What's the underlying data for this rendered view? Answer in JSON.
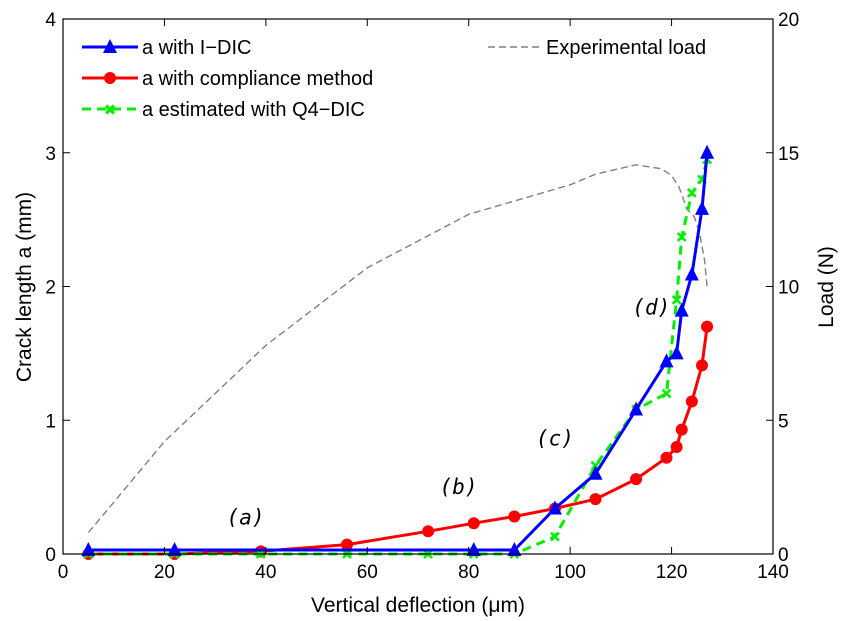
{
  "chart_data": {
    "type": "line",
    "xlabel": "Vertical deflection (μm)",
    "ylabel": "Crack length a (mm)",
    "y2label": "Load (N)",
    "xlim": [
      0,
      140
    ],
    "ylim": [
      0,
      4
    ],
    "y2lim": [
      0,
      20
    ],
    "x_ticks": [
      "0",
      "20",
      "40",
      "60",
      "80",
      "100",
      "120",
      "140"
    ],
    "y_ticks": [
      "0",
      "1",
      "2",
      "3",
      "4"
    ],
    "y2_ticks": [
      "0",
      "5",
      "10",
      "15",
      "20"
    ],
    "grid": false,
    "legend_left_position": "top-left",
    "legend_right_position": "top-right",
    "series": [
      {
        "name": "a with I−DIC",
        "axis": "left",
        "color": "#0000ff",
        "marker": "triangle",
        "line": "solid",
        "x": [
          5,
          22,
          81,
          89,
          97,
          105,
          113,
          119,
          121,
          122,
          124,
          126,
          127
        ],
        "y": [
          0.03,
          0.03,
          0.03,
          0.03,
          0.34,
          0.6,
          1.08,
          1.44,
          1.5,
          1.82,
          2.09,
          2.58,
          3.0
        ]
      },
      {
        "name": "a with compliance method",
        "axis": "left",
        "color": "#ff0000",
        "marker": "circle",
        "line": "solid",
        "x": [
          5,
          22,
          39,
          56,
          72,
          81,
          89,
          97,
          105,
          113,
          119,
          121,
          122,
          124,
          126,
          127
        ],
        "y": [
          0.0,
          0.0,
          0.02,
          0.07,
          0.17,
          0.23,
          0.28,
          0.34,
          0.41,
          0.56,
          0.72,
          0.8,
          0.93,
          1.14,
          1.41,
          1.7
        ]
      },
      {
        "name": "a estimated with Q4−DIC",
        "axis": "left",
        "color": "#00ee00",
        "marker": "x",
        "line": "dashed",
        "x": [
          5,
          22,
          39,
          56,
          72,
          81,
          89,
          97,
          105,
          113,
          119,
          121,
          122,
          124,
          126,
          127
        ],
        "y": [
          0.0,
          0.0,
          0.0,
          0.0,
          0.0,
          0.0,
          0.0,
          0.13,
          0.66,
          1.08,
          1.2,
          1.9,
          2.37,
          2.7,
          2.8,
          2.95
        ]
      },
      {
        "name": "Experimental load",
        "axis": "right",
        "color": "#808080",
        "marker": "none",
        "line": "dashed",
        "x": [
          5,
          20,
          40,
          60,
          80,
          100,
          105,
          113,
          118,
          120,
          121.5,
          123,
          124.5,
          125.5,
          126.5,
          127
        ],
        "y": [
          0.8,
          4.2,
          7.8,
          10.7,
          12.7,
          13.8,
          14.2,
          14.55,
          14.4,
          14.15,
          13.7,
          12.9,
          12.6,
          12.0,
          11.0,
          10.0
        ]
      }
    ],
    "annotations": [
      {
        "text": "(a)",
        "x": 36,
        "y": 0.22
      },
      {
        "text": "(b)",
        "x": 78,
        "y": 0.45
      },
      {
        "text": "(c)",
        "x": 97,
        "y": 0.81
      },
      {
        "text": "(d)",
        "x": 116,
        "y": 1.79
      }
    ]
  }
}
